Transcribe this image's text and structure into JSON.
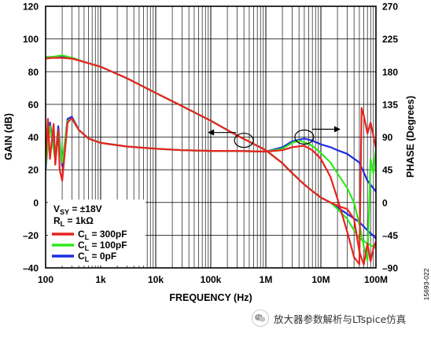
{
  "chart_data": {
    "type": "line",
    "x_axis": {
      "label": "FREQUENCY (Hz)",
      "scale": "log",
      "range": [
        100,
        100000000
      ],
      "ticks": [
        100,
        1000,
        10000,
        100000,
        1000000,
        10000000,
        100000000
      ],
      "tick_labels": [
        "100",
        "1k",
        "10k",
        "100k",
        "1M",
        "10M",
        "100M"
      ]
    },
    "y_left": {
      "label": "GAIN (dB)",
      "range": [
        -40,
        120
      ],
      "ticks": [
        -40,
        -20,
        0,
        20,
        40,
        60,
        80,
        100,
        120
      ],
      "tick_labels": [
        "–40",
        "–20",
        "0",
        "20",
        "40",
        "60",
        "80",
        "100",
        "120"
      ]
    },
    "y_right": {
      "label": "PHASE (Degrees)",
      "range": [
        -90,
        270
      ],
      "ticks": [
        -90,
        -45,
        0,
        45,
        90,
        135,
        180,
        225,
        270
      ],
      "tick_labels": [
        "–90",
        "–45",
        "0",
        "45",
        "90",
        "135",
        "180",
        "225",
        "270"
      ]
    },
    "grid": true,
    "legend": {
      "position": "bottom-left",
      "conditions": [
        {
          "main": "V",
          "sub": "SY",
          "rest": " = ±18V"
        },
        {
          "main": "R",
          "sub": "L",
          "rest": " = 1kΩ"
        }
      ],
      "entries": [
        {
          "main": "C",
          "sub": "L",
          "rest": " = 300pF",
          "color": "#e8231f"
        },
        {
          "main": "C",
          "sub": "L",
          "rest": " = 100pF",
          "color": "#2ee81c"
        },
        {
          "main": "C",
          "sub": "L",
          "rest": " = 0pF",
          "color": "#1b2de0"
        }
      ]
    },
    "series": [
      {
        "name": "C_L = 0pF, gain",
        "color": "#1b2de0",
        "axis": "left",
        "x": [
          100,
          130,
          200,
          300,
          500,
          1000,
          3000,
          10000,
          30000,
          100000,
          300000,
          1000000,
          2000000,
          3000000,
          5000000,
          7000000,
          10000000,
          15000000,
          20000000,
          30000000,
          50000000,
          70000000,
          100000000
        ],
        "y": [
          89,
          89,
          89,
          88.5,
          86,
          83,
          76,
          67,
          59,
          50,
          41,
          32,
          24,
          18,
          11,
          7,
          3,
          0,
          -3,
          -7,
          -12,
          -17,
          -22
        ]
      },
      {
        "name": "C_L = 0pF, phase",
        "color": "#1b2de0",
        "axis": "right",
        "x": [
          100,
          120,
          150,
          170,
          200,
          250,
          300,
          400,
          600,
          1000,
          3000,
          10000,
          30000,
          100000,
          300000,
          1000000,
          2000000,
          3000000,
          5000000,
          7000000,
          10000000,
          15000000,
          20000000,
          30000000,
          50000000,
          70000000,
          100000000
        ],
        "y": [
          45,
          110,
          60,
          105,
          50,
          115,
          118,
          100,
          88,
          82,
          77,
          74,
          72,
          71,
          71,
          70,
          76,
          84,
          88,
          85,
          80,
          76,
          72,
          67,
          55,
          30,
          15
        ]
      },
      {
        "name": "C_L = 100pF, gain",
        "color": "#2ee81c",
        "axis": "left",
        "x": [
          100,
          130,
          200,
          300,
          500,
          1000,
          3000,
          10000,
          30000,
          100000,
          300000,
          1000000,
          2000000,
          3000000,
          5000000,
          7000000,
          10000000,
          15000000,
          20000000,
          30000000,
          40000000,
          50000000,
          70000000,
          100000000
        ],
        "y": [
          89,
          89,
          90,
          88.5,
          86,
          83,
          76,
          67,
          59,
          50,
          41,
          32,
          24,
          18,
          11,
          7,
          3,
          0,
          -4,
          -10,
          -17,
          -22,
          -25,
          -28
        ]
      },
      {
        "name": "C_L = 100pF, phase",
        "color": "#2ee81c",
        "axis": "right",
        "x": [
          100,
          120,
          150,
          170,
          200,
          250,
          300,
          400,
          600,
          1000,
          3000,
          10000,
          30000,
          100000,
          300000,
          1000000,
          2000000,
          3000000,
          4000000,
          5000000,
          7000000,
          10000000,
          15000000,
          20000000,
          30000000,
          40000000,
          50000000,
          60000000,
          70000000,
          80000000,
          90000000,
          100000000
        ],
        "y": [
          50,
          105,
          58,
          100,
          55,
          112,
          115,
          100,
          88,
          82,
          77,
          74,
          72,
          71,
          71,
          70,
          74,
          82,
          85,
          83,
          78,
          68,
          55,
          40,
          20,
          0,
          -30,
          -60,
          -80,
          60,
          40,
          75
        ]
      },
      {
        "name": "C_L = 300pF, gain",
        "color": "#e8231f",
        "axis": "left",
        "x": [
          100,
          130,
          200,
          300,
          500,
          1000,
          3000,
          10000,
          30000,
          100000,
          300000,
          1000000,
          2000000,
          3000000,
          5000000,
          7000000,
          10000000,
          15000000,
          20000000,
          30000000,
          40000000,
          50000000,
          60000000,
          70000000,
          80000000,
          90000000,
          100000000
        ],
        "y": [
          88,
          88.5,
          88.5,
          88,
          86,
          83,
          76,
          67,
          59,
          50,
          41,
          32,
          24,
          18,
          11,
          7,
          3,
          0,
          -2,
          -4,
          -10,
          -30,
          -38,
          -25,
          -36,
          -28,
          -24
        ]
      },
      {
        "name": "C_L = 300pF, phase",
        "color": "#e8231f",
        "axis": "right",
        "x": [
          100,
          110,
          120,
          140,
          150,
          170,
          180,
          200,
          250,
          300,
          400,
          600,
          1000,
          3000,
          10000,
          30000,
          100000,
          300000,
          1000000,
          2000000,
          3000000,
          5000000,
          7000000,
          10000000,
          15000000,
          20000000,
          30000000,
          40000000,
          50000000,
          55000000,
          60000000,
          70000000,
          80000000,
          100000000
        ],
        "y": [
          55,
          115,
          60,
          108,
          52,
          100,
          45,
          30,
          110,
          116,
          100,
          88,
          82,
          77,
          74,
          72,
          71,
          71,
          70,
          72,
          76,
          78,
          72,
          60,
          35,
          5,
          -40,
          -75,
          -85,
          130,
          120,
          95,
          110,
          75
        ]
      }
    ],
    "annotations": [
      {
        "type": "ellipse-arrow",
        "target_axis": "left",
        "x": 400000,
        "y": 38,
        "arrow": "left"
      },
      {
        "type": "ellipse-arrow",
        "target_axis": "right",
        "x": 5000000,
        "y": 90,
        "arrow": "right"
      }
    ],
    "figure_id": "15693-022"
  },
  "watermark": {
    "text": "放大器参数解析与LTspice仿真"
  }
}
